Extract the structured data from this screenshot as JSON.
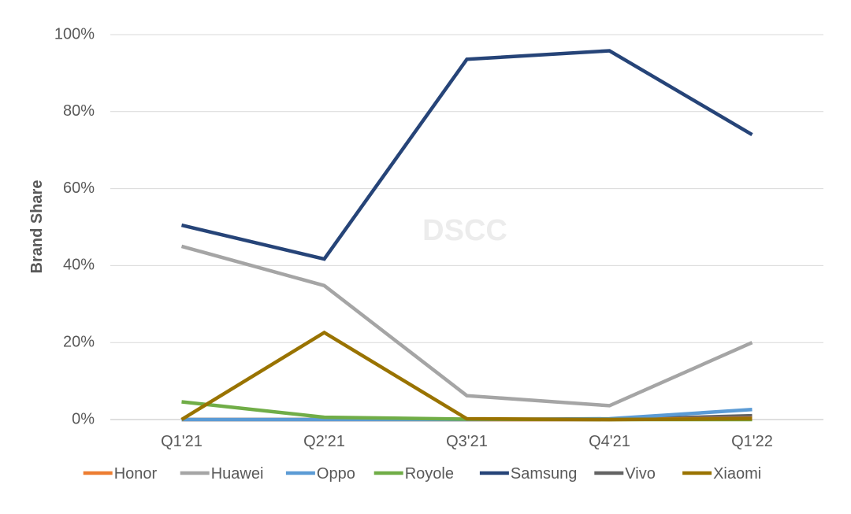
{
  "chart_data": {
    "type": "line",
    "categories": [
      "Q1'21",
      "Q2'21",
      "Q3'21",
      "Q4'21",
      "Q1'22"
    ],
    "ylabel": "Brand Share",
    "xlabel": "",
    "ylim": [
      0,
      100
    ],
    "yticks": [
      0,
      20,
      40,
      60,
      80,
      100
    ],
    "ytick_labels": [
      "0%",
      "20%",
      "40%",
      "60%",
      "80%",
      "100%"
    ],
    "grid": true,
    "legend_position": "bottom",
    "watermark": "DSCC",
    "series": [
      {
        "name": "Honor",
        "color": "#ED7D31",
        "values": [
          0,
          0,
          0,
          0,
          0.3
        ]
      },
      {
        "name": "Huawei",
        "color": "#A5A5A5",
        "values": [
          45,
          34.8,
          6.2,
          3.6,
          20
        ]
      },
      {
        "name": "Oppo",
        "color": "#5B9BD5",
        "values": [
          0,
          0,
          0,
          0.2,
          2.6
        ]
      },
      {
        "name": "Royole",
        "color": "#70AD47",
        "values": [
          4.6,
          0.6,
          0.1,
          0,
          0
        ]
      },
      {
        "name": "Samsung",
        "color": "#264478",
        "values": [
          50.5,
          41.7,
          93.6,
          95.8,
          74
        ]
      },
      {
        "name": "Vivo",
        "color": "#636363",
        "values": [
          0,
          0,
          0,
          0,
          1
        ]
      },
      {
        "name": "Xiaomi",
        "color": "#997300",
        "values": [
          0,
          22.6,
          0.2,
          0,
          0.2
        ]
      }
    ]
  }
}
